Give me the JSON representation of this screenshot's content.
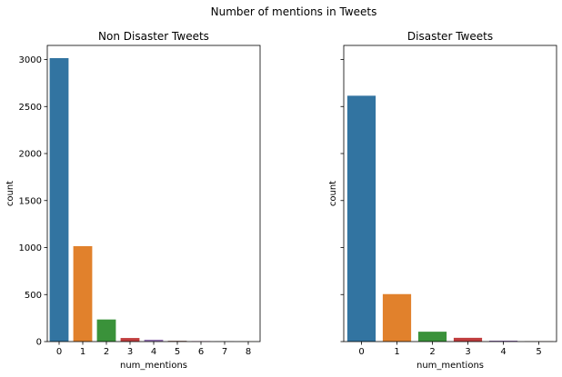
{
  "figure": {
    "suptitle": "Number of mentions in Tweets"
  },
  "chart_data": [
    {
      "type": "bar",
      "title": "Non Disaster Tweets",
      "xlabel": "num_mentions",
      "ylabel": "count",
      "categories": [
        "0",
        "1",
        "2",
        "3",
        "4",
        "5",
        "6",
        "7",
        "8"
      ],
      "values": [
        3015,
        1015,
        235,
        38,
        20,
        8,
        5,
        2,
        1
      ],
      "colors": [
        "#3274a1",
        "#e1812c",
        "#3a923a",
        "#c03d3e",
        "#9372b2",
        "#845b53",
        "#d684bd",
        "#7f7f7f",
        "#a9aa35"
      ],
      "ylim": [
        0,
        3150
      ],
      "yticks": [
        0,
        500,
        1000,
        1500,
        2000,
        2500,
        3000
      ],
      "grid": false,
      "show_ytick_labels": true
    },
    {
      "type": "bar",
      "title": "Disaster Tweets",
      "xlabel": "num_mentions",
      "ylabel": "count",
      "categories": [
        "0",
        "1",
        "2",
        "3",
        "4",
        "5"
      ],
      "values": [
        2615,
        505,
        105,
        40,
        10,
        3
      ],
      "colors": [
        "#3274a1",
        "#e1812c",
        "#3a923a",
        "#c03d3e",
        "#9372b2",
        "#845b53"
      ],
      "ylim": [
        0,
        3150
      ],
      "yticks": [
        0,
        500,
        1000,
        1500,
        2000,
        2500,
        3000
      ],
      "grid": false,
      "show_ytick_labels": false
    }
  ]
}
